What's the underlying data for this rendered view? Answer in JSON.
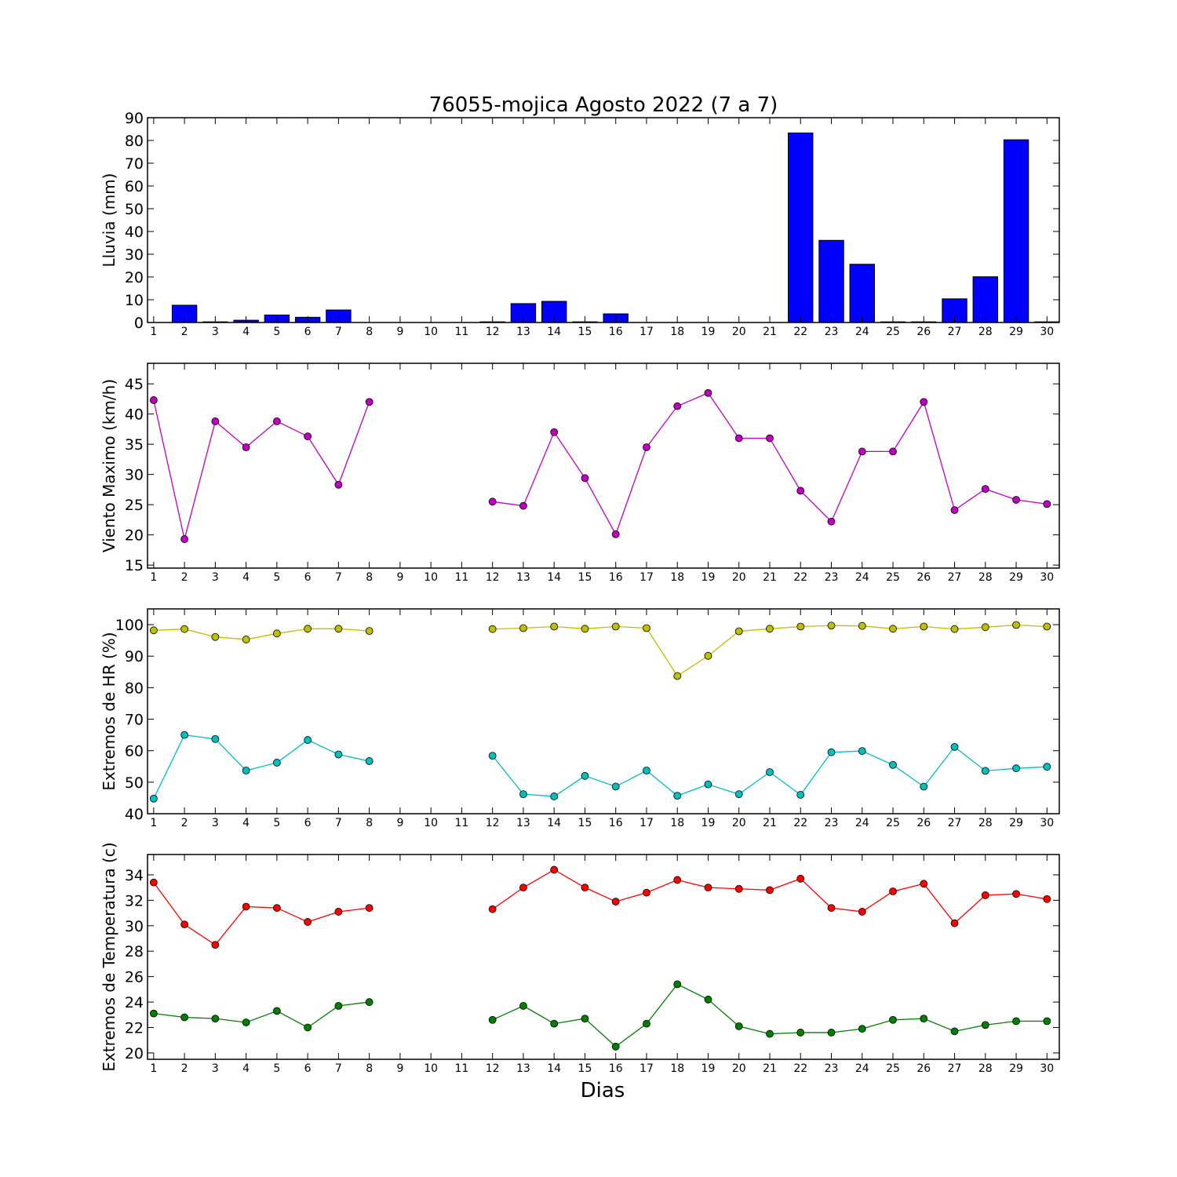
{
  "figure": {
    "title": "76055-mojica Agosto 2022  (7 a 7)",
    "xlabel": "Dias"
  },
  "chart_data": [
    {
      "type": "bar",
      "ylabel": "Lluvia (mm)",
      "ylim": [
        0,
        90
      ],
      "yticks": [
        0,
        10,
        20,
        30,
        40,
        50,
        60,
        70,
        80,
        90
      ],
      "categories": [
        1,
        2,
        3,
        4,
        5,
        6,
        7,
        8,
        9,
        10,
        11,
        12,
        13,
        14,
        15,
        16,
        17,
        18,
        19,
        20,
        21,
        22,
        23,
        24,
        25,
        26,
        27,
        28,
        29,
        30
      ],
      "series": [
        {
          "values": [
            0,
            7.6,
            0.3,
            1.0,
            3.3,
            2.3,
            5.5,
            0,
            0,
            0,
            0,
            0.3,
            8.3,
            9.3,
            0.3,
            3.8,
            0,
            0,
            0,
            0,
            0,
            83.3,
            36.1,
            25.6,
            0.3,
            0.3,
            10.4,
            20.1,
            80.3,
            0.3
          ],
          "color": "#0000ff"
        }
      ]
    },
    {
      "type": "line",
      "ylabel": "Viento Maximo (km/h)",
      "ylim": [
        14.5,
        48.4
      ],
      "yticks": [
        15,
        20,
        25,
        30,
        35,
        40,
        45
      ],
      "categories": [
        1,
        2,
        3,
        4,
        5,
        6,
        7,
        8,
        9,
        10,
        11,
        12,
        13,
        14,
        15,
        16,
        17,
        18,
        19,
        20,
        21,
        22,
        23,
        24,
        25,
        26,
        27,
        28,
        29,
        30
      ],
      "series": [
        {
          "values": [
            42.3,
            19.3,
            38.8,
            34.5,
            38.8,
            36.3,
            28.3,
            42.0,
            null,
            null,
            null,
            25.5,
            24.8,
            37.0,
            29.4,
            20.1,
            34.5,
            41.3,
            43.5,
            36.0,
            36.0,
            27.3,
            22.2,
            33.8,
            33.8,
            42.0,
            24.1,
            27.6,
            25.8,
            25.1
          ],
          "color": "#bf00bf"
        }
      ]
    },
    {
      "type": "line",
      "ylabel": "Extremos de HR (%)",
      "ylim": [
        40,
        105
      ],
      "yticks": [
        40,
        50,
        60,
        70,
        80,
        90,
        100
      ],
      "categories": [
        1,
        2,
        3,
        4,
        5,
        6,
        7,
        8,
        9,
        10,
        11,
        12,
        13,
        14,
        15,
        16,
        17,
        18,
        19,
        20,
        21,
        22,
        23,
        24,
        25,
        26,
        27,
        28,
        29,
        30
      ],
      "series": [
        {
          "values": [
            98.2,
            98.6,
            96.1,
            95.3,
            97.2,
            98.7,
            98.7,
            98.0,
            null,
            null,
            null,
            98.6,
            98.9,
            99.4,
            98.7,
            99.4,
            98.9,
            83.7,
            90.1,
            97.9,
            98.7,
            99.4,
            99.7,
            99.6,
            98.7,
            99.4,
            98.6,
            99.2,
            99.9,
            99.4
          ],
          "color": "#bfbf00"
        },
        {
          "values": [
            44.8,
            65.0,
            63.7,
            53.7,
            56.2,
            63.4,
            58.8,
            56.7,
            null,
            null,
            null,
            58.4,
            46.2,
            45.5,
            52.0,
            48.6,
            53.7,
            45.7,
            49.3,
            46.2,
            53.2,
            46.0,
            59.5,
            59.9,
            55.5,
            48.6,
            61.2,
            53.6,
            54.4,
            54.9
          ],
          "color": "#00bfbf"
        }
      ]
    },
    {
      "type": "line",
      "ylabel": "Extremos de Temperatura (c)",
      "ylim": [
        19.5,
        35.6
      ],
      "yticks": [
        20,
        22,
        24,
        26,
        28,
        30,
        32,
        34
      ],
      "categories": [
        1,
        2,
        3,
        4,
        5,
        6,
        7,
        8,
        9,
        10,
        11,
        12,
        13,
        14,
        15,
        16,
        17,
        18,
        19,
        20,
        21,
        22,
        23,
        24,
        25,
        26,
        27,
        28,
        29,
        30
      ],
      "series": [
        {
          "values": [
            33.4,
            30.1,
            28.5,
            31.5,
            31.4,
            30.3,
            31.1,
            31.4,
            null,
            null,
            null,
            31.3,
            33.0,
            34.4,
            33.0,
            31.9,
            32.6,
            33.6,
            33.0,
            32.9,
            32.8,
            33.7,
            31.4,
            31.1,
            32.7,
            33.3,
            30.2,
            32.4,
            32.5,
            32.1
          ],
          "color": "#ff0000"
        },
        {
          "values": [
            23.1,
            22.8,
            22.7,
            22.4,
            23.3,
            22.0,
            23.7,
            24.0,
            null,
            null,
            null,
            22.6,
            23.7,
            22.3,
            22.7,
            20.5,
            22.3,
            25.4,
            24.2,
            22.1,
            21.5,
            21.6,
            21.6,
            21.9,
            22.6,
            22.7,
            21.7,
            22.2,
            22.5,
            22.5
          ],
          "color": "#007f00"
        }
      ]
    }
  ]
}
